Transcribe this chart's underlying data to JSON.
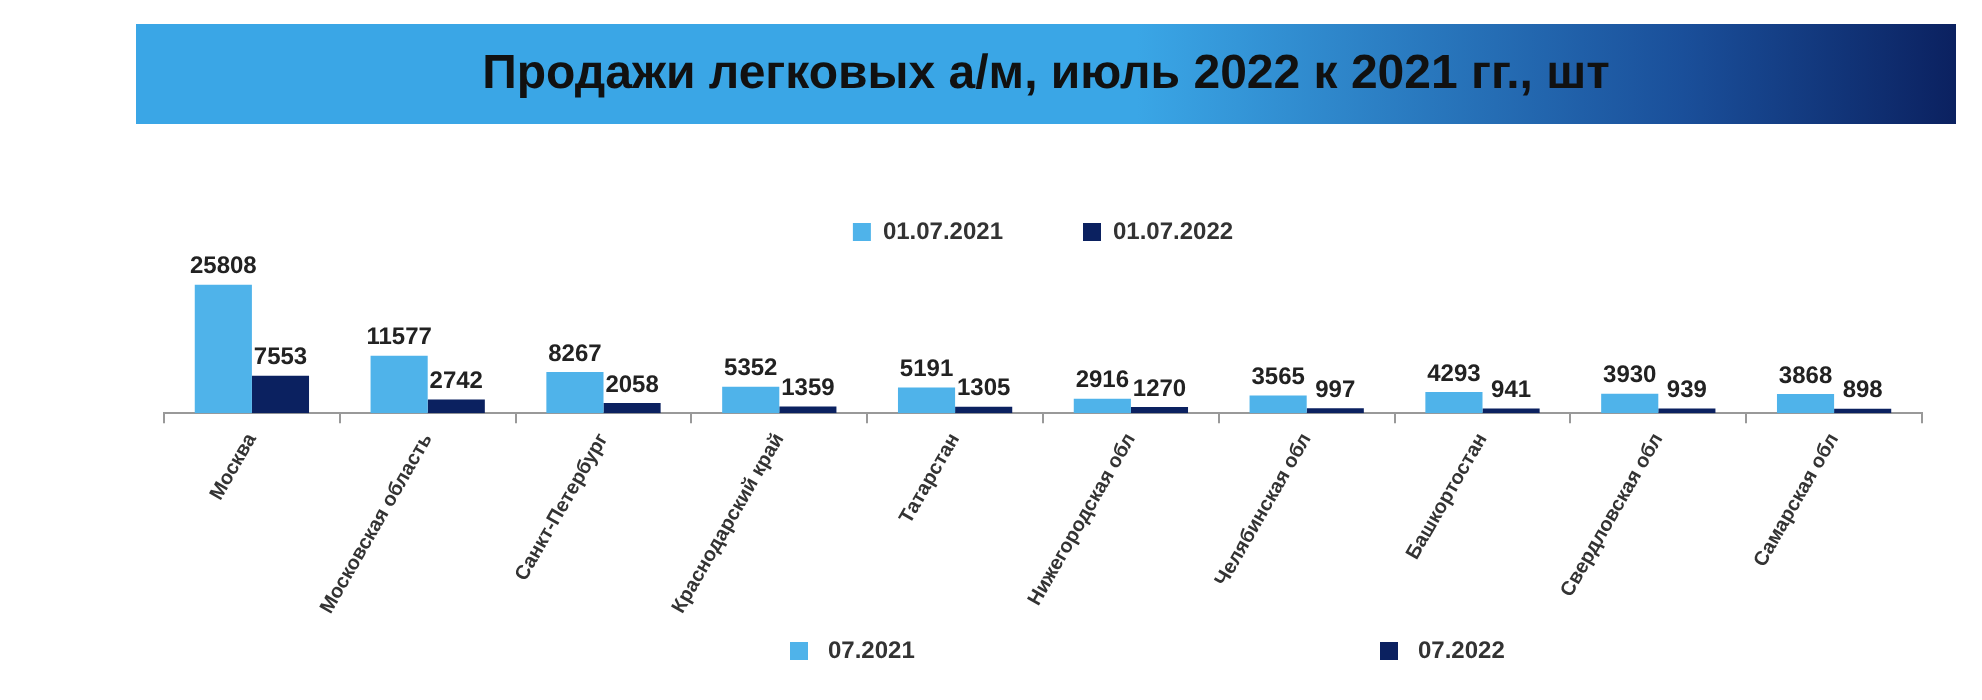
{
  "chart_data": {
    "type": "bar",
    "title": "Продажи легковых а/м, июль 2022 к 2021 гг., шт",
    "categories": [
      "Москва",
      "Московская область",
      "Санкт-Петербург",
      "Краснодарский край",
      "Татарстан",
      "Нижегородская обл",
      "Челябинская обл",
      "Башкортостан",
      "Свердловская обл",
      "Самарская обл"
    ],
    "series": [
      {
        "name": "01.07.2021",
        "color": "#4fb3ea",
        "values": [
          25808,
          11577,
          8267,
          5352,
          5191,
          2916,
          3565,
          4293,
          3930,
          3868
        ]
      },
      {
        "name": "01.07.2022",
        "color": "#0b2160",
        "values": [
          7553,
          2742,
          2058,
          1359,
          1305,
          1270,
          997,
          941,
          939,
          898
        ]
      }
    ],
    "data_labels": true,
    "grid": false,
    "legend": "top",
    "annotations": [
      "07.2021",
      "07.2022"
    ]
  }
}
